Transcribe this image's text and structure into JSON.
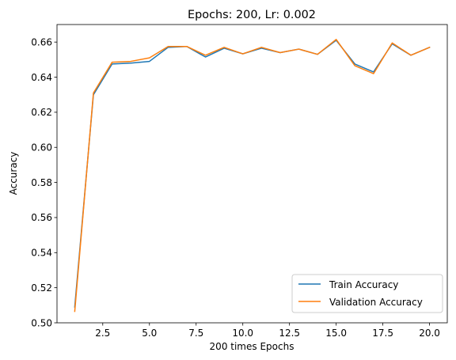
{
  "chart_data": {
    "type": "line",
    "title": "Epochs: 200, Lr: 0.002",
    "xlabel": "200 times Epochs",
    "ylabel": "Accuracy",
    "xlim": [
      0.05,
      20.95
    ],
    "ylim": [
      0.5,
      0.67
    ],
    "xticks": [
      2.5,
      5.0,
      7.5,
      10.0,
      12.5,
      15.0,
      17.5,
      20.0
    ],
    "xtick_labels": [
      "2.5",
      "5.0",
      "7.5",
      "10.0",
      "12.5",
      "15.0",
      "17.5",
      "20.0"
    ],
    "yticks": [
      0.5,
      0.52,
      0.54,
      0.56,
      0.58,
      0.6,
      0.62,
      0.64,
      0.66
    ],
    "ytick_labels": [
      "0.50",
      "0.52",
      "0.54",
      "0.56",
      "0.58",
      "0.60",
      "0.62",
      "0.64",
      "0.66"
    ],
    "x": [
      1,
      2,
      3,
      4,
      5,
      6,
      7,
      8,
      9,
      10,
      11,
      12,
      13,
      14,
      15,
      16,
      17,
      18,
      19,
      20
    ],
    "series": [
      {
        "name": "Train Accuracy",
        "color": "#1f77b4",
        "values": [
          0.509,
          0.63,
          0.6475,
          0.648,
          0.649,
          0.657,
          0.6575,
          0.6515,
          0.6565,
          0.6533,
          0.6565,
          0.654,
          0.656,
          0.653,
          0.661,
          0.6475,
          0.643,
          0.659,
          0.6525,
          0.657
        ]
      },
      {
        "name": "Validation Accuracy",
        "color": "#ff7f0e",
        "values": [
          0.5065,
          0.631,
          0.6485,
          0.649,
          0.651,
          0.6575,
          0.6575,
          0.6525,
          0.657,
          0.6533,
          0.657,
          0.654,
          0.656,
          0.653,
          0.6615,
          0.6465,
          0.642,
          0.6595,
          0.6525,
          0.657
        ]
      }
    ],
    "grid": false,
    "legend_position": "lower-right"
  }
}
